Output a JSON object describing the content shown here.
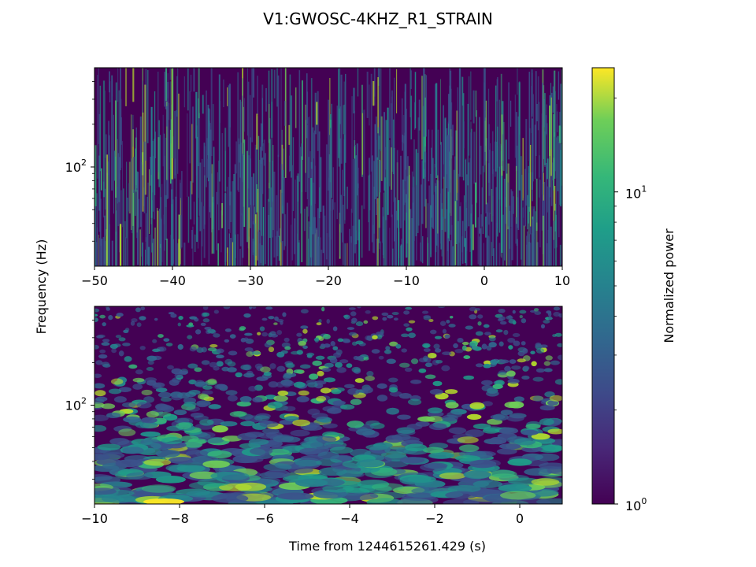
{
  "chart_data": [
    {
      "type": "heatmap",
      "title": "V1:GWOSC-4KHZ_R1_STRAIN",
      "panel": "top",
      "x_ticks": [
        -50,
        -40,
        -30,
        -20,
        -10,
        0,
        10
      ],
      "x_tick_labels": [
        "−50",
        "−40",
        "−30",
        "−20",
        "−10",
        "0",
        "10"
      ],
      "xlim": [
        -50,
        10
      ],
      "yscale": "log",
      "ylim": [
        20,
        500
      ],
      "y_tick_label": "10",
      "y_tick_exponent": "2",
      "y_tick_value": 100,
      "ylabel": "Frequency (Hz)",
      "grid": false
    },
    {
      "type": "heatmap",
      "panel": "bottom",
      "x_ticks": [
        -10,
        -8,
        -6,
        -4,
        -2,
        0
      ],
      "x_tick_labels": [
        "−10",
        "−8",
        "−6",
        "−4",
        "−2",
        "0"
      ],
      "xlim": [
        -10,
        1
      ],
      "xlabel": "Time from 1244615261.429 (s)",
      "yscale": "log",
      "ylim": [
        20,
        500
      ],
      "y_tick_label": "10",
      "y_tick_exponent": "2",
      "y_tick_value": 100,
      "grid": false
    }
  ],
  "colorbar": {
    "label": "Normalized power",
    "scale": "log",
    "range": [
      1,
      25
    ],
    "colormap": "viridis",
    "ticks": [
      {
        "value": 1,
        "base": "10",
        "exp": "0"
      },
      {
        "value": 10,
        "base": "10",
        "exp": "1"
      }
    ]
  },
  "colors": {
    "viridis_low": "#440154",
    "viridis_mid": "#21918c",
    "viridis_high": "#fde725"
  }
}
